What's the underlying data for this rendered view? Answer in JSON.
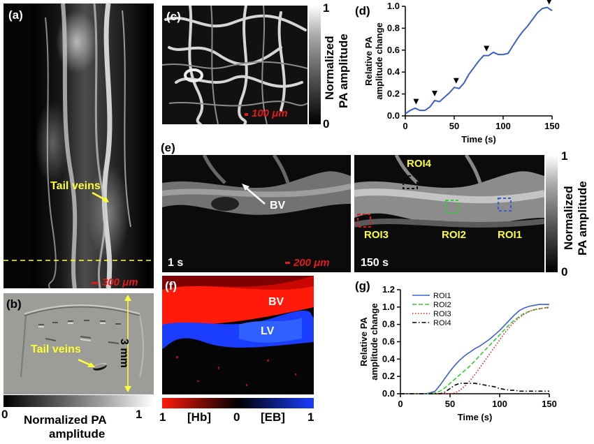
{
  "panels": {
    "a": {
      "label": "(a)",
      "annotation": "Tail veins",
      "scalebar": "300 μm"
    },
    "b": {
      "label": "(b)",
      "annotation": "Tail veins",
      "dimension": "3 mm"
    },
    "c": {
      "label": "(c)",
      "scalebar": "100 μm"
    },
    "d": {
      "label": "(d)"
    },
    "e": {
      "label": "(e)",
      "bv": "BV",
      "t1": "1 s",
      "t2": "150 s",
      "scalebar": "200 μm",
      "rois": [
        "ROI4",
        "ROI3",
        "ROI2",
        "ROI1"
      ]
    },
    "f": {
      "label": "(f)",
      "bv": "BV",
      "lv": "LV"
    },
    "g": {
      "label": "(g)"
    }
  },
  "colorbars": {
    "bottom_left": {
      "min": "0",
      "max": "1",
      "title_line1": "Normalized PA",
      "title_line2": "amplitude"
    },
    "c": {
      "max": "1",
      "min": "0",
      "title_line1": "Normalized",
      "title_line2": "PA amplitude"
    },
    "e": {
      "max": "1",
      "min": "0",
      "title_line1": "Normalized",
      "title_line2": "PA amplitude"
    },
    "f": {
      "left": "1",
      "hb": "[Hb]",
      "mid": "0",
      "eb": "[EB]",
      "right": "1"
    }
  },
  "chart_data": [
    {
      "type": "line",
      "panel": "d",
      "xlabel": "Time (s)",
      "ylabel": "Relative PA amplitude change",
      "xlim": [
        0,
        150
      ],
      "ylim": [
        0,
        1.0
      ],
      "xticks": [
        "0",
        "50",
        "100",
        "150"
      ],
      "yticks": [
        "0.0",
        "0.2",
        "0.4",
        "0.6",
        "0.8",
        "1.0"
      ],
      "color": "#3a5fcd",
      "x": [
        0,
        5,
        10,
        15,
        20,
        25,
        30,
        35,
        40,
        45,
        50,
        55,
        60,
        65,
        70,
        75,
        80,
        85,
        90,
        95,
        100,
        105,
        110,
        115,
        120,
        125,
        130,
        135,
        140,
        145,
        150
      ],
      "y": [
        0.02,
        0.05,
        0.07,
        0.05,
        0.05,
        0.08,
        0.14,
        0.13,
        0.17,
        0.21,
        0.26,
        0.25,
        0.3,
        0.38,
        0.44,
        0.5,
        0.55,
        0.55,
        0.58,
        0.56,
        0.56,
        0.57,
        0.64,
        0.71,
        0.77,
        0.82,
        0.88,
        0.94,
        0.98,
        0.99,
        0.96
      ],
      "arrows_x": [
        11,
        30,
        52,
        83,
        147
      ]
    },
    {
      "type": "line",
      "panel": "g",
      "xlabel": "Time (s)",
      "ylabel": "Relative PA amplitude change",
      "xlim": [
        0,
        150
      ],
      "ylim": [
        0,
        1.2
      ],
      "xticks": [
        "0",
        "50",
        "100",
        "150"
      ],
      "yticks": [
        "0.0",
        "0.2",
        "0.4",
        "0.6",
        "0.8",
        "1.0",
        "1.2"
      ],
      "legend_position": "top-left",
      "series": [
        {
          "name": "ROI1",
          "color": "#3a5fcd",
          "dash": "solid",
          "x": [
            0,
            25,
            30,
            35,
            40,
            45,
            50,
            55,
            60,
            65,
            70,
            75,
            80,
            85,
            90,
            95,
            100,
            105,
            110,
            115,
            120,
            125,
            130,
            135,
            140,
            145,
            150
          ],
          "y": [
            0,
            0,
            0.01,
            0.03,
            0.1,
            0.18,
            0.26,
            0.33,
            0.39,
            0.44,
            0.48,
            0.52,
            0.55,
            0.59,
            0.63,
            0.68,
            0.73,
            0.79,
            0.85,
            0.91,
            0.96,
            0.99,
            1.01,
            1.02,
            1.03,
            1.03,
            1.03
          ]
        },
        {
          "name": "ROI2",
          "color": "#33cc33",
          "dash": "dash",
          "x": [
            0,
            30,
            35,
            40,
            45,
            50,
            55,
            60,
            65,
            70,
            75,
            80,
            85,
            90,
            95,
            100,
            105,
            110,
            115,
            120,
            125,
            130,
            135,
            140,
            145,
            150
          ],
          "y": [
            0,
            0,
            0.01,
            0.03,
            0.07,
            0.12,
            0.17,
            0.22,
            0.27,
            0.32,
            0.38,
            0.44,
            0.5,
            0.56,
            0.62,
            0.68,
            0.74,
            0.8,
            0.85,
            0.89,
            0.93,
            0.95,
            0.97,
            0.98,
            0.99,
            1.0
          ]
        },
        {
          "name": "ROI3",
          "color": "#e31a1c",
          "dash": "dot",
          "x": [
            0,
            50,
            55,
            60,
            65,
            70,
            75,
            80,
            85,
            90,
            95,
            100,
            105,
            110,
            115,
            120,
            125,
            130,
            135,
            140,
            145,
            150
          ],
          "y": [
            0,
            0,
            0.01,
            0.04,
            0.09,
            0.15,
            0.22,
            0.3,
            0.38,
            0.46,
            0.54,
            0.62,
            0.7,
            0.77,
            0.83,
            0.88,
            0.92,
            0.95,
            0.97,
            0.98,
            0.99,
            0.99
          ]
        },
        {
          "name": "ROI4",
          "color": "#000000",
          "dash": "dashdot",
          "x": [
            0,
            40,
            45,
            50,
            55,
            60,
            65,
            70,
            75,
            80,
            85,
            90,
            95,
            100,
            105,
            110,
            115,
            120,
            130,
            140,
            150
          ],
          "y": [
            0,
            0,
            0.02,
            0.06,
            0.1,
            0.12,
            0.12,
            0.12,
            0.12,
            0.11,
            0.1,
            0.09,
            0.08,
            0.06,
            0.05,
            0.04,
            0.04,
            0.03,
            0.03,
            0.03,
            0.03
          ]
        }
      ]
    }
  ]
}
